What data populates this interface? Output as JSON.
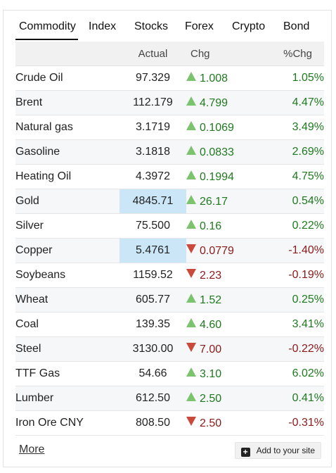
{
  "tabs": [
    "Commodity",
    "Index",
    "Stocks",
    "Forex",
    "Crypto",
    "Bond"
  ],
  "active_tab": 0,
  "columns": {
    "name": "",
    "actual": "Actual",
    "chg": "Chg",
    "pct": "%Chg"
  },
  "colors": {
    "up_arrow": "#7cc36e",
    "down_arrow": "#c94a3b",
    "up_text": "#1f7a1f",
    "down_text": "#8a1a1a",
    "highlight": "#cbe7f7"
  },
  "rows": [
    {
      "name": "Crude Oil",
      "actual": "97.329",
      "chg": "1.008",
      "pct": "1.05%",
      "dir": "up",
      "highlight": false
    },
    {
      "name": "Brent",
      "actual": "112.179",
      "chg": "4.799",
      "pct": "4.47%",
      "dir": "up",
      "highlight": false
    },
    {
      "name": "Natural gas",
      "actual": "3.1719",
      "chg": "0.1069",
      "pct": "3.49%",
      "dir": "up",
      "highlight": false
    },
    {
      "name": "Gasoline",
      "actual": "3.1818",
      "chg": "0.0833",
      "pct": "2.69%",
      "dir": "up",
      "highlight": false
    },
    {
      "name": "Heating Oil",
      "actual": "4.3972",
      "chg": "0.1994",
      "pct": "4.75%",
      "dir": "up",
      "highlight": false
    },
    {
      "name": "Gold",
      "actual": "4845.71",
      "chg": "26.17",
      "pct": "0.54%",
      "dir": "up",
      "highlight": true
    },
    {
      "name": "Silver",
      "actual": "75.500",
      "chg": "0.16",
      "pct": "0.22%",
      "dir": "up",
      "highlight": false
    },
    {
      "name": "Copper",
      "actual": "5.4761",
      "chg": "0.0779",
      "pct": "-1.40%",
      "dir": "down",
      "highlight": true
    },
    {
      "name": "Soybeans",
      "actual": "1159.52",
      "chg": "2.23",
      "pct": "-0.19%",
      "dir": "down",
      "highlight": false
    },
    {
      "name": "Wheat",
      "actual": "605.77",
      "chg": "1.52",
      "pct": "0.25%",
      "dir": "up",
      "highlight": false
    },
    {
      "name": "Coal",
      "actual": "139.35",
      "chg": "4.60",
      "pct": "3.41%",
      "dir": "up",
      "highlight": false
    },
    {
      "name": "Steel",
      "actual": "3130.00",
      "chg": "7.00",
      "pct": "-0.22%",
      "dir": "down",
      "highlight": false
    },
    {
      "name": "TTF Gas",
      "actual": "54.66",
      "chg": "3.10",
      "pct": "6.02%",
      "dir": "up",
      "highlight": false
    },
    {
      "name": "Lumber",
      "actual": "612.50",
      "chg": "2.50",
      "pct": "0.41%",
      "dir": "up",
      "highlight": false
    },
    {
      "name": "Iron Ore CNY",
      "actual": "808.50",
      "chg": "2.50",
      "pct": "-0.31%",
      "dir": "down",
      "highlight": false
    }
  ],
  "footer": {
    "more_label": "More",
    "add_label": "Add to your site",
    "add_icon": "plus-square-icon"
  }
}
